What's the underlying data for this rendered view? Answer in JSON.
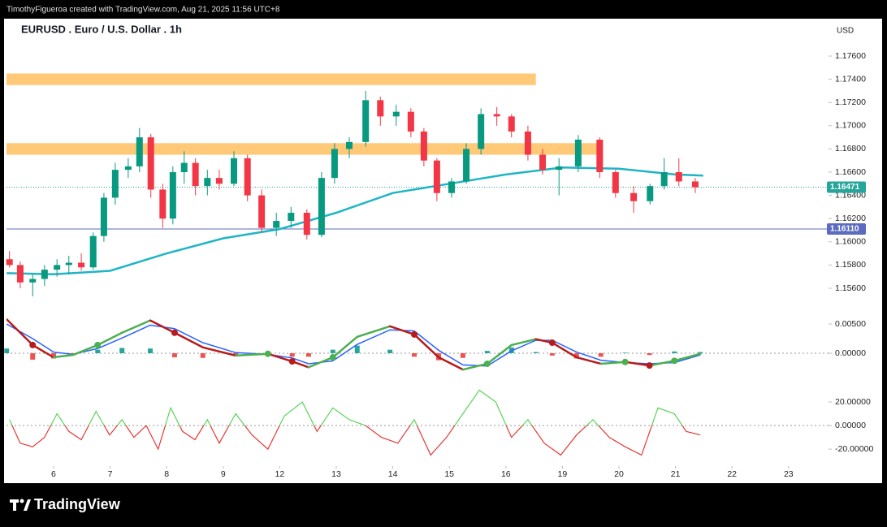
{
  "header": {
    "caption": "TimothyFigueroa created with TradingView.com, Aug 21, 2025 11:56 UTC+8"
  },
  "footer": {
    "brand": "TradingView"
  },
  "chart_data": {
    "type": "candlestick",
    "title": "EURUSD . Euro / U.S. Dollar . 1h",
    "currency": "USD",
    "up_color": "#089981",
    "down_color": "#f23645",
    "x": [
      -0.78,
      -0.59,
      -0.37,
      -0.16,
      0.06,
      0.27,
      0.49,
      0.7,
      0.89,
      1.09,
      1.32,
      1.52,
      1.72,
      1.93,
      2.11,
      2.31,
      2.51,
      2.72,
      2.93,
      3.19,
      3.43,
      3.68,
      3.94,
      4.2,
      4.48,
      4.74,
      4.97,
      5.23,
      5.52,
      5.78,
      6.06,
      6.32,
      6.55,
      6.78,
      7.04,
      7.3,
      7.56,
      7.84,
      8.1,
      8.39,
      8.65,
      8.94,
      9.28,
      9.66,
      9.94,
      10.26,
      10.55,
      10.8,
      11.06,
      11.35
    ],
    "open": [
      1.1585,
      1.158,
      1.1565,
      1.1568,
      1.1576,
      1.158,
      1.1582,
      1.1578,
      1.1605,
      1.1638,
      1.1662,
      1.1665,
      1.169,
      1.1645,
      1.162,
      1.166,
      1.1668,
      1.1648,
      1.1655,
      1.165,
      1.1672,
      1.164,
      1.1612,
      1.1618,
      1.1625,
      1.1606,
      1.1655,
      1.168,
      1.1686,
      1.1722,
      1.1708,
      1.1712,
      1.1695,
      1.167,
      1.1642,
      1.1652,
      1.168,
      1.171,
      1.1708,
      1.1695,
      1.1675,
      1.1662,
      1.1665,
      1.1688,
      1.166,
      1.1642,
      1.1635,
      1.1648,
      1.166,
      1.1652
    ],
    "high": [
      1.1592,
      1.1583,
      1.1572,
      1.158,
      1.1585,
      1.1588,
      1.159,
      1.1608,
      1.1642,
      1.1668,
      1.1672,
      1.1698,
      1.1693,
      1.165,
      1.1665,
      1.1678,
      1.1672,
      1.1662,
      1.1662,
      1.1678,
      1.1675,
      1.1645,
      1.1625,
      1.163,
      1.1628,
      1.166,
      1.1685,
      1.169,
      1.173,
      1.1725,
      1.1718,
      1.1715,
      1.1698,
      1.1672,
      1.1655,
      1.1685,
      1.1715,
      1.1716,
      1.171,
      1.17,
      1.168,
      1.1672,
      1.1692,
      1.169,
      1.1662,
      1.1648,
      1.165,
      1.1672,
      1.1672,
      1.1655
    ],
    "low": [
      1.1578,
      1.156,
      1.1553,
      1.1562,
      1.157,
      1.1572,
      1.1575,
      1.1576,
      1.16,
      1.1632,
      1.1655,
      1.166,
      1.1638,
      1.1612,
      1.1615,
      1.165,
      1.164,
      1.164,
      1.1645,
      1.1648,
      1.1635,
      1.1608,
      1.1605,
      1.1612,
      1.1602,
      1.1604,
      1.165,
      1.1672,
      1.1682,
      1.17,
      1.17,
      1.169,
      1.1665,
      1.1635,
      1.1638,
      1.165,
      1.1675,
      1.17,
      1.169,
      1.167,
      1.1658,
      1.164,
      1.166,
      1.1655,
      1.1638,
      1.1625,
      1.1632,
      1.1645,
      1.1648,
      1.1642
    ],
    "close": [
      1.158,
      1.1565,
      1.1568,
      1.1576,
      1.158,
      1.1582,
      1.1578,
      1.1605,
      1.1638,
      1.1662,
      1.1665,
      1.169,
      1.1645,
      1.162,
      1.166,
      1.1668,
      1.1648,
      1.1655,
      1.165,
      1.1672,
      1.164,
      1.1612,
      1.1618,
      1.1625,
      1.1606,
      1.1655,
      1.168,
      1.1686,
      1.1722,
      1.1708,
      1.1712,
      1.1695,
      1.167,
      1.1642,
      1.1652,
      1.168,
      1.171,
      1.1708,
      1.1695,
      1.1675,
      1.1662,
      1.1665,
      1.1688,
      1.166,
      1.1642,
      1.1635,
      1.1648,
      1.166,
      1.1652,
      1.1647
    ],
    "xlim": [
      -0.833,
      13.707
    ],
    "xticks": [
      {
        "value": 0,
        "label": "6"
      },
      {
        "value": 1,
        "label": "7"
      },
      {
        "value": 2,
        "label": "8"
      },
      {
        "value": 3,
        "label": "9"
      },
      {
        "value": 4,
        "label": "12"
      },
      {
        "value": 5,
        "label": "13"
      },
      {
        "value": 6,
        "label": "14"
      },
      {
        "value": 7,
        "label": "15"
      },
      {
        "value": 8,
        "label": "16"
      },
      {
        "value": 9,
        "label": "19"
      },
      {
        "value": 10,
        "label": "20"
      },
      {
        "value": 11,
        "label": "21"
      },
      {
        "value": 12,
        "label": "22"
      },
      {
        "value": 13,
        "label": "23"
      }
    ],
    "ylim": [
      1.1539,
      1.17908
    ],
    "yticks": [
      {
        "value": 1.176,
        "label": "1.17600"
      },
      {
        "value": 1.174,
        "label": "1.17400"
      },
      {
        "value": 1.172,
        "label": "1.17200"
      },
      {
        "value": 1.17,
        "label": "1.17000"
      },
      {
        "value": 1.168,
        "label": "1.16800"
      },
      {
        "value": 1.166,
        "label": "1.16600"
      },
      {
        "value": 1.164,
        "label": "1.16400"
      },
      {
        "value": 1.162,
        "label": "1.16200"
      },
      {
        "value": 1.16,
        "label": "1.16000"
      },
      {
        "value": 1.158,
        "label": "1.15800"
      },
      {
        "value": 1.156,
        "label": "1.15600"
      }
    ],
    "grid": false,
    "moving_average": {
      "color": "#1fb5c4",
      "x": [
        -0.83,
        0,
        1,
        2,
        3,
        4,
        5,
        6,
        7,
        8,
        9,
        10,
        11,
        11.49
      ],
      "values": [
        1.1573,
        1.1572,
        1.1575,
        1.159,
        1.1603,
        1.1611,
        1.1625,
        1.1642,
        1.165,
        1.1658,
        1.1664,
        1.1663,
        1.1658,
        1.1657
      ]
    },
    "zones": [
      {
        "from": 1.1735,
        "to": 1.1745,
        "x_end": 8.53,
        "color": "#ffc978"
      },
      {
        "from": 1.1675,
        "to": 1.1685,
        "x_end": 9.61,
        "color": "#ffc978"
      }
    ],
    "levels": [
      {
        "value": 1.16471,
        "color": "#26a69a",
        "style": "dotted"
      },
      {
        "value": 1.1611,
        "label": "1.16110",
        "color": "#5c6bc0",
        "style": "solid"
      }
    ],
    "macd": {
      "x": [
        -0.83,
        -0.37,
        0,
        0.34,
        0.78,
        1.21,
        1.71,
        2.14,
        2.64,
        3.22,
        3.79,
        4.22,
        4.51,
        4.94,
        5.37,
        5.95,
        6.38,
        6.81,
        7.24,
        7.67,
        8.1,
        8.53,
        8.82,
        9.25,
        9.68,
        10.11,
        10.54,
        10.98,
        11.44
      ],
      "macd": [
        0.0058,
        0.0014,
        -0.0007,
        -0.0003,
        0.0014,
        0.0035,
        0.0056,
        0.0035,
        0.001,
        -0.0004,
        -0.0001,
        -0.0014,
        -0.0024,
        -0.0007,
        0.0028,
        0.0046,
        0.0032,
        -0.0007,
        -0.0028,
        -0.0018,
        0.0014,
        0.0024,
        0.0018,
        -0.0007,
        -0.0018,
        -0.0015,
        -0.0021,
        -0.0013,
        -0.0001
      ],
      "signal": [
        0.005,
        0.0025,
        0.0002,
        -0.0002,
        0.0008,
        0.0026,
        0.0048,
        0.0042,
        0.0018,
        0.0001,
        -0.0002,
        -0.0008,
        -0.0018,
        -0.0013,
        0.0015,
        0.004,
        0.0038,
        0.0005,
        -0.002,
        -0.0022,
        0.0004,
        0.0022,
        0.0022,
        0.0002,
        -0.0012,
        -0.0016,
        -0.0018,
        -0.0016,
        -0.0003
      ],
      "histogram": [
        0.0008,
        -0.0011,
        -0.0009,
        -0.0001,
        0.0006,
        0.0009,
        0.0008,
        -0.0007,
        -0.0008,
        -0.0005,
        0.0001,
        -0.0006,
        -0.0006,
        0.0006,
        0.0013,
        0.0006,
        -0.0006,
        -0.0012,
        -0.0008,
        0.0004,
        0.001,
        0.0002,
        -0.0004,
        -0.0009,
        -0.0006,
        0.0001,
        -0.0003,
        0.0003,
        0.0002
      ],
      "rise_color": "#4caf50",
      "fall_color": "#b71c1c",
      "signal_color": "#2962ff",
      "hist_up_color": "#26a69a",
      "hist_down_color": "#ef5350",
      "ylim": [
        -0.00486,
        0.00694
      ],
      "yticks": [
        {
          "value": 0.005,
          "label": "0.00500"
        },
        {
          "value": 0,
          "label": "0.00000"
        }
      ]
    },
    "oscillator": {
      "x": [
        -0.78,
        -0.59,
        -0.37,
        -0.16,
        0.06,
        0.27,
        0.49,
        0.75,
        0.99,
        1.21,
        1.42,
        1.64,
        1.85,
        2.07,
        2.28,
        2.5,
        2.72,
        2.93,
        3.22,
        3.51,
        3.79,
        4.08,
        4.4,
        4.66,
        4.94,
        5.23,
        5.52,
        5.8,
        6.09,
        6.38,
        6.67,
        6.95,
        7.24,
        7.53,
        7.82,
        8.1,
        8.39,
        8.68,
        8.97,
        9.25,
        9.54,
        9.83,
        10.11,
        10.4,
        10.69,
        10.98,
        11.19,
        11.44
      ],
      "values": [
        5,
        -15,
        -18,
        -10,
        10,
        -5,
        -12,
        12,
        -8,
        5,
        -10,
        0,
        -20,
        15,
        -5,
        -12,
        5,
        -15,
        10,
        -8,
        -20,
        8,
        20,
        -5,
        15,
        5,
        0,
        -10,
        -15,
        5,
        -25,
        -10,
        10,
        30,
        20,
        -10,
        5,
        -15,
        -25,
        -8,
        5,
        -10,
        -18,
        -25,
        15,
        10,
        -5,
        -8
      ],
      "up_color": "#5ad45a",
      "down_color": "#e53935",
      "ylim": [
        -33,
        31.7
      ],
      "yticks": [
        {
          "value": 20,
          "label": "20.00000"
        },
        {
          "value": 0,
          "label": "0.00000"
        },
        {
          "value": -20,
          "label": "-20.00000"
        }
      ]
    }
  }
}
